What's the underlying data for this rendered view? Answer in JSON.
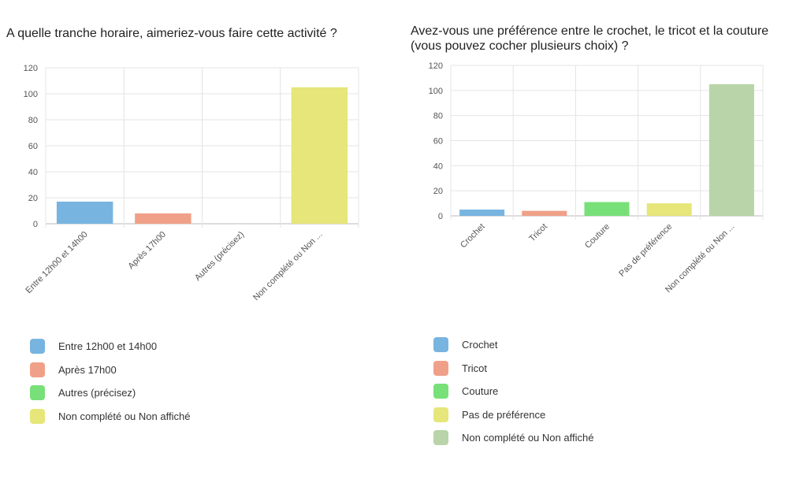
{
  "charts": [
    {
      "title": "A quelle tranche horaire, aimeriez-vous faire cette activité ?",
      "legend": [
        {
          "label": "Entre 12h00 et 14h00",
          "color": "#78b4e0"
        },
        {
          "label": "Après 17h00",
          "color": "#f0a088"
        },
        {
          "label": "Autres (précisez)",
          "color": "#78e078"
        },
        {
          "label": "Non complété ou Non affiché",
          "color": "#e6e67a"
        }
      ],
      "chart_data": {
        "type": "bar",
        "categories": [
          "Entre 12h00 et 14h00",
          "Après 17h00",
          "Autres (précisez)",
          "Non complété ou Non ..."
        ],
        "values": [
          17,
          8,
          0,
          105
        ],
        "colors": [
          "#78b4e0",
          "#f0a088",
          "#78e078",
          "#e6e67a"
        ],
        "yticks": [
          "0",
          "20",
          "40",
          "60",
          "80",
          "100",
          "120"
        ],
        "ylim": [
          0,
          120
        ],
        "grid": true,
        "legend_position": "bottom"
      }
    },
    {
      "title": "Avez-vous une préférence entre le crochet, le tricot et la couture (vous pouvez cocher plusieurs choix) ?",
      "legend": [
        {
          "label": "Crochet",
          "color": "#78b4e0"
        },
        {
          "label": "Tricot",
          "color": "#f0a088"
        },
        {
          "label": "Couture",
          "color": "#78e078"
        },
        {
          "label": "Pas de préférence",
          "color": "#e6e67a"
        },
        {
          "label": "Non complété ou Non affiché",
          "color": "#b8d4a8"
        }
      ],
      "chart_data": {
        "type": "bar",
        "categories": [
          "Crochet",
          "Tricot",
          "Couture",
          "Pas de préférence",
          "Non complété ou Non ..."
        ],
        "values": [
          5,
          4,
          11,
          10,
          105
        ],
        "colors": [
          "#78b4e0",
          "#f0a088",
          "#78e078",
          "#e6e67a",
          "#b8d4a8"
        ],
        "yticks": [
          "0",
          "20",
          "40",
          "60",
          "80",
          "100",
          "120"
        ],
        "ylim": [
          0,
          120
        ],
        "grid": true,
        "legend_position": "bottom"
      }
    }
  ]
}
